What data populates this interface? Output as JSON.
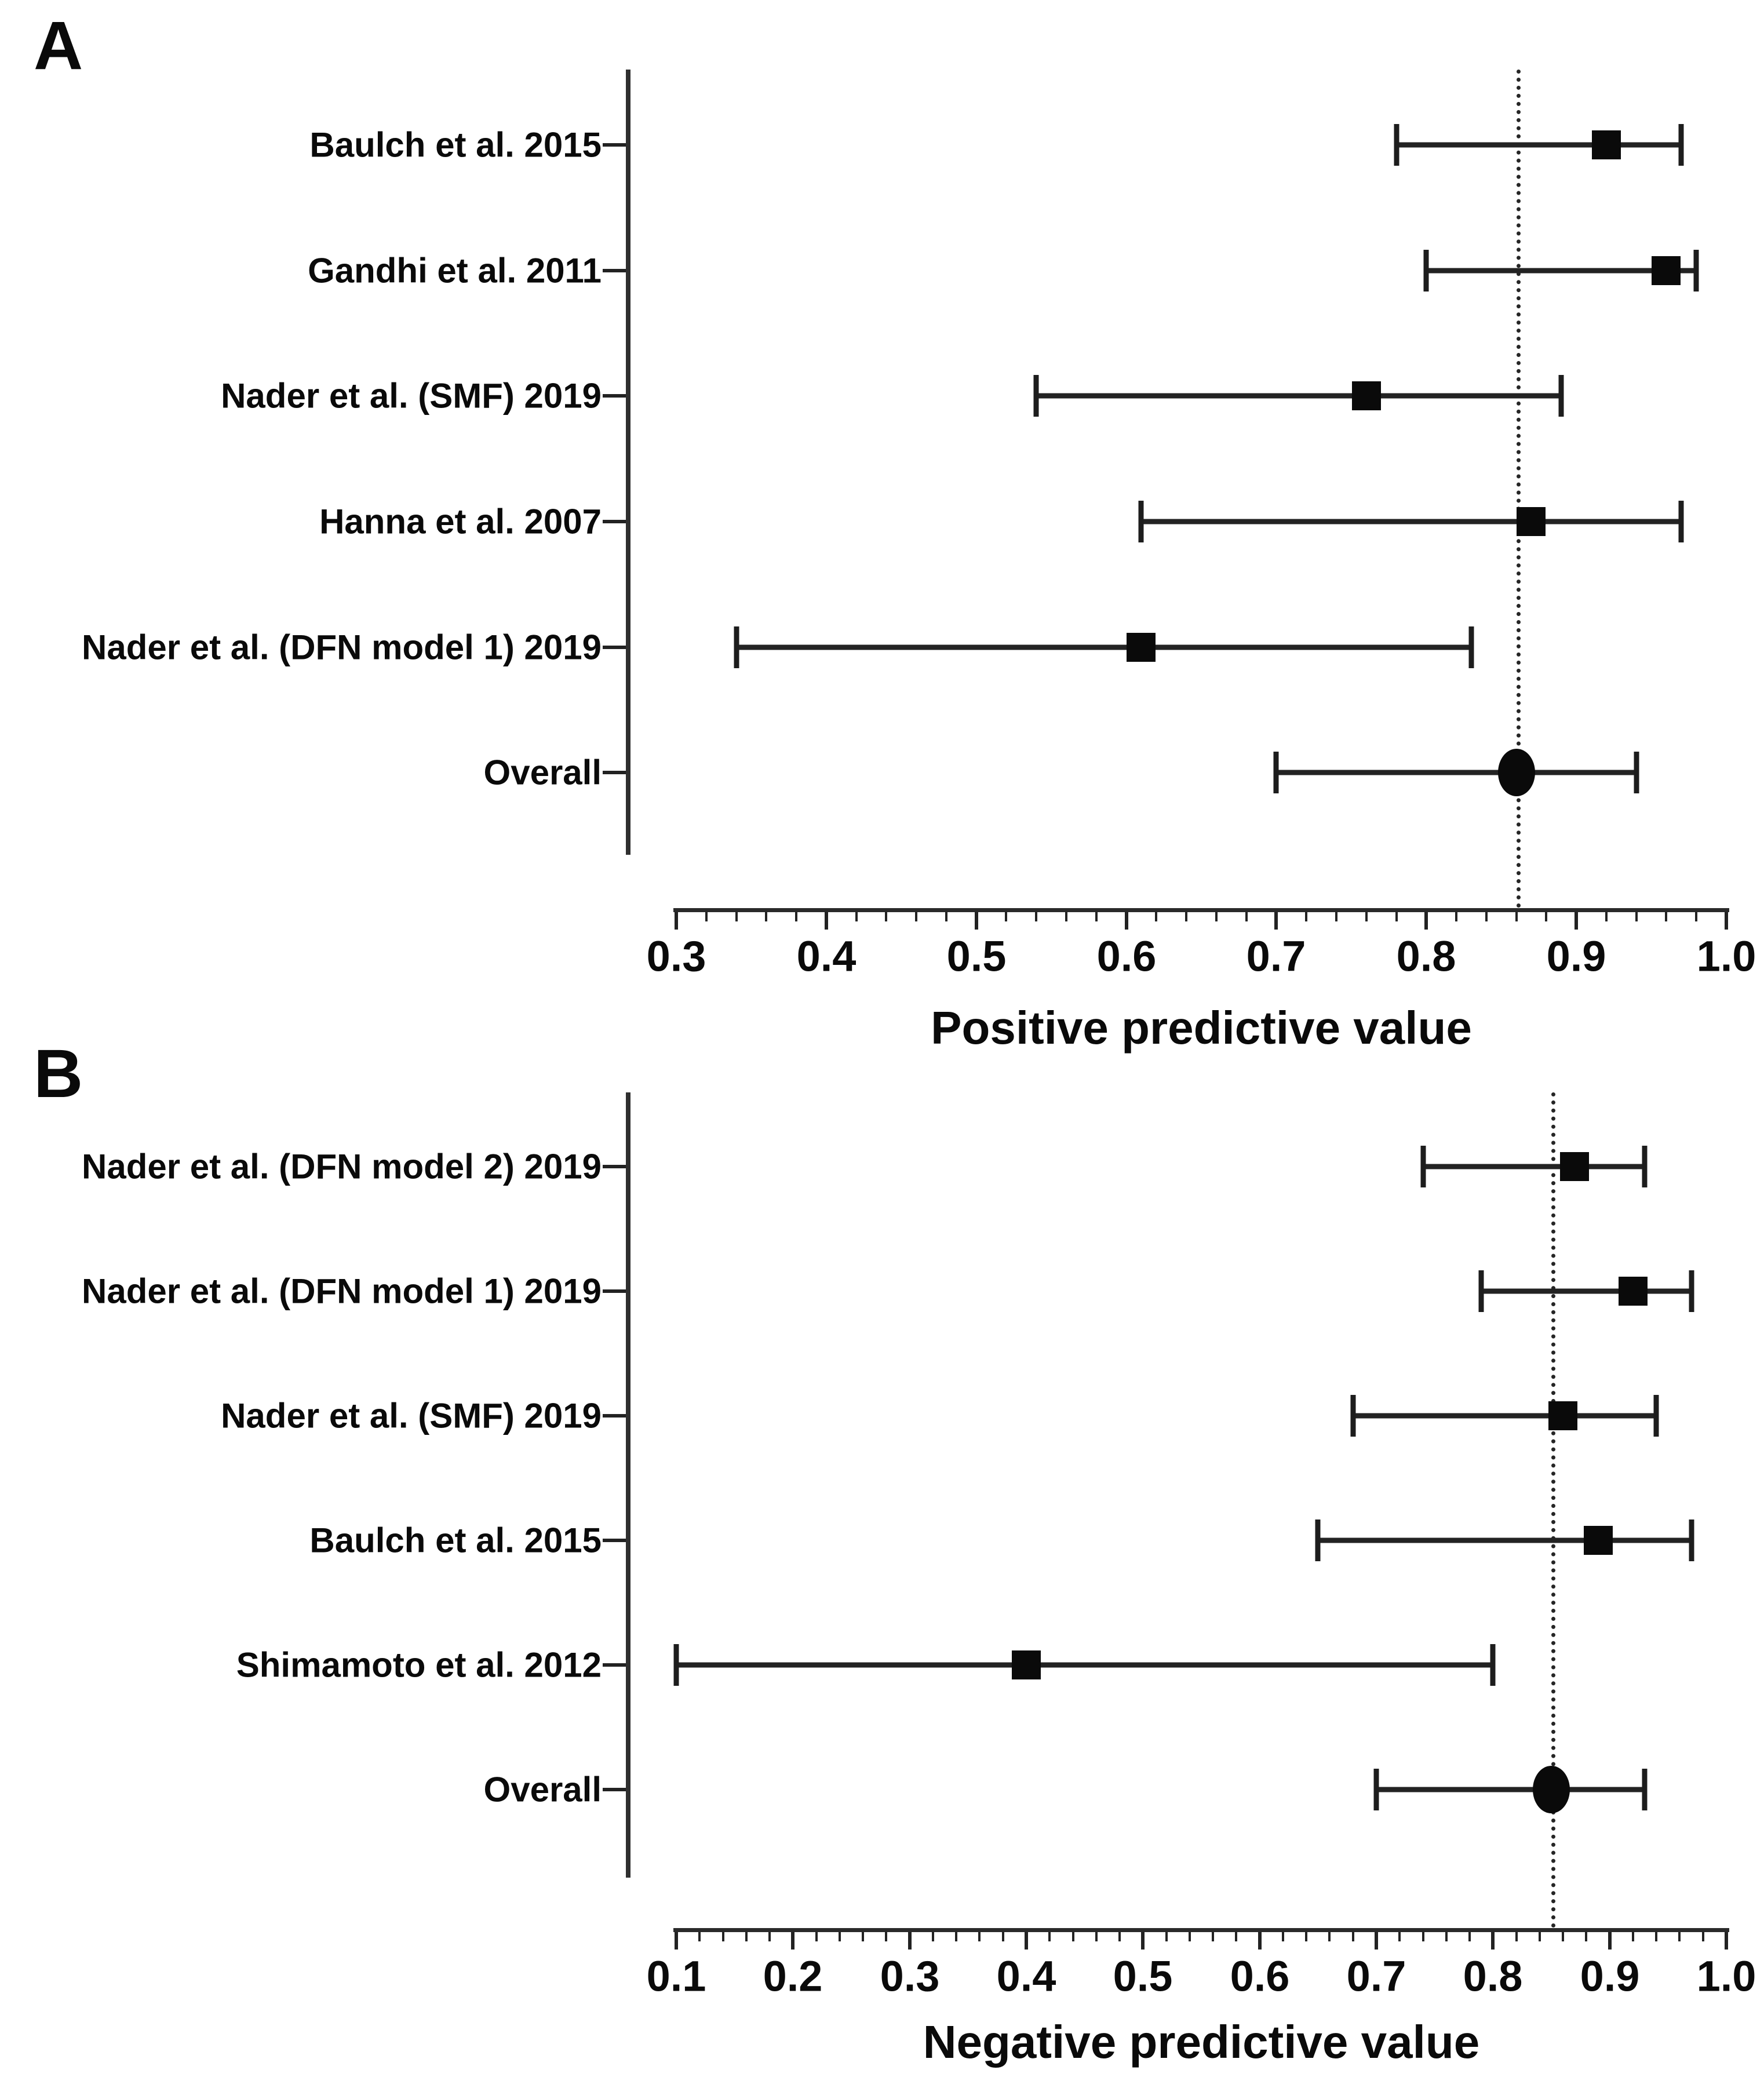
{
  "figure": {
    "background_color": "#ffffff",
    "ink_color": "#1d1d1d",
    "description": "Two-panel forest plot of predictive values across studies"
  },
  "chart_data": [
    {
      "type": "scatter",
      "variant": "forest-plot",
      "letter": "A",
      "axis": {
        "label": "Positive predictive value",
        "min": 0.3,
        "max": 1.0,
        "major_step": 0.1,
        "minor_step": 0.02,
        "tick_labels": [
          "0.3",
          "0.4",
          "0.5",
          "0.6",
          "0.7",
          "0.8",
          "0.9",
          "1.0"
        ]
      },
      "reference_line": 0.86,
      "legend": "none",
      "grid": "off",
      "studies": [
        {
          "label": "Baulch et al. 2015",
          "estimate": 0.92,
          "ci_low": 0.78,
          "ci_high": 0.97,
          "marker": "square"
        },
        {
          "label": "Gandhi et al. 2011",
          "estimate": 0.96,
          "ci_low": 0.8,
          "ci_high": 0.98,
          "marker": "square"
        },
        {
          "label": "Nader et al. (SMF) 2019",
          "estimate": 0.76,
          "ci_low": 0.54,
          "ci_high": 0.89,
          "marker": "square"
        },
        {
          "label": "Hanna et al. 2007",
          "estimate": 0.87,
          "ci_low": 0.61,
          "ci_high": 0.97,
          "marker": "square"
        },
        {
          "label": "Nader et al. (DFN model 1) 2019",
          "estimate": 0.61,
          "ci_low": 0.34,
          "ci_high": 0.83,
          "marker": "square"
        },
        {
          "label": "Overall",
          "estimate": 0.86,
          "ci_low": 0.7,
          "ci_high": 0.94,
          "marker": "circle"
        }
      ]
    },
    {
      "type": "scatter",
      "variant": "forest-plot",
      "letter": "B",
      "axis": {
        "label": "Negative predictive value",
        "min": 0.1,
        "max": 1.0,
        "major_step": 0.1,
        "minor_step": 0.02,
        "tick_labels": [
          "0.1",
          "0.2",
          "0.3",
          "0.4",
          "0.5",
          "0.6",
          "0.7",
          "0.8",
          "0.9",
          "1.0"
        ]
      },
      "reference_line": 0.85,
      "legend": "none",
      "grid": "off",
      "studies": [
        {
          "label": "Nader et al. (DFN model 2) 2019",
          "estimate": 0.87,
          "ci_low": 0.74,
          "ci_high": 0.93,
          "marker": "square"
        },
        {
          "label": "Nader et al. (DFN model 1) 2019",
          "estimate": 0.92,
          "ci_low": 0.79,
          "ci_high": 0.97,
          "marker": "square"
        },
        {
          "label": "Nader et al. (SMF) 2019",
          "estimate": 0.86,
          "ci_low": 0.68,
          "ci_high": 0.94,
          "marker": "square"
        },
        {
          "label": "Baulch et al. 2015",
          "estimate": 0.89,
          "ci_low": 0.65,
          "ci_high": 0.97,
          "marker": "square"
        },
        {
          "label": "Shimamoto et al. 2012",
          "estimate": 0.4,
          "ci_low": 0.1,
          "ci_high": 0.8,
          "marker": "square"
        },
        {
          "label": "Overall",
          "estimate": 0.85,
          "ci_low": 0.7,
          "ci_high": 0.93,
          "marker": "circle"
        }
      ]
    }
  ]
}
